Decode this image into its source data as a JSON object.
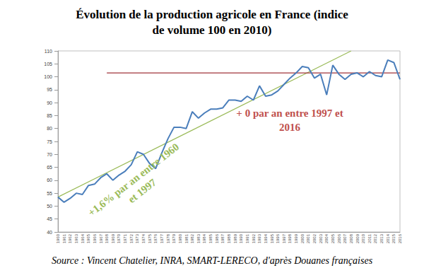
{
  "chart_data": {
    "type": "line",
    "title": "Évolution de la production agricole en France (indice\nde volume 100 en 2010)",
    "source": "Source : Vincent Chatelier, INRA, SMART-LERECO, d'après Douanes françaises",
    "categories": [
      "1960",
      "1961",
      "1962",
      "1963",
      "1964",
      "1965",
      "1966",
      "1967",
      "1968",
      "1969",
      "1970",
      "1971",
      "1972",
      "1973",
      "1974",
      "1975",
      "1976",
      "1977",
      "1978",
      "1979",
      "1980",
      "1981",
      "1982",
      "1983",
      "1984",
      "1985",
      "1986",
      "1987",
      "1988",
      "1989",
      "1990",
      "1991",
      "1992",
      "1993",
      "1994",
      "1995",
      "1996",
      "1997",
      "1998",
      "1999",
      "2000",
      "2001",
      "2002",
      "2003",
      "2004",
      "2005",
      "2006",
      "2007",
      "2008",
      "2009",
      "2010",
      "2011",
      "2012",
      "2013",
      "2014",
      "2015",
      "2016"
    ],
    "series": [
      {
        "color": "#4a7ebb",
        "values": [
          53.5,
          51.5,
          53,
          55,
          54.5,
          58,
          58.5,
          61,
          62.5,
          60,
          62,
          63.5,
          66,
          71,
          70,
          66.5,
          64.5,
          70.5,
          76,
          80.5,
          80.5,
          80,
          86.5,
          84,
          86,
          87.5,
          87.5,
          88,
          91,
          91,
          90.5,
          92.5,
          91,
          96.5,
          92.5,
          93,
          94.5,
          97,
          99.5,
          101.5,
          104,
          103.5,
          99.5,
          101,
          93,
          104.5,
          101,
          99,
          101,
          101.5,
          100,
          102,
          100.5,
          100,
          106.5,
          105.5,
          99
        ]
      },
      {
        "color": "#9bbb59",
        "values": [
          53.5,
          null,
          null,
          null,
          null,
          null,
          null,
          null,
          null,
          null,
          null,
          null,
          null,
          null,
          null,
          null,
          null,
          null,
          null,
          null,
          null,
          null,
          null,
          null,
          null,
          null,
          null,
          null,
          null,
          null,
          null,
          null,
          null,
          null,
          null,
          null,
          null,
          null,
          null,
          null,
          null,
          null,
          null,
          null,
          null,
          null,
          null,
          null,
          110,
          null,
          null,
          null,
          null,
          null,
          null,
          null,
          null
        ]
      },
      {
        "color": "#a0353a",
        "values": [
          null,
          null,
          null,
          null,
          null,
          null,
          null,
          null,
          101.5,
          null,
          null,
          null,
          null,
          null,
          null,
          null,
          null,
          null,
          null,
          null,
          null,
          null,
          null,
          null,
          null,
          null,
          null,
          null,
          null,
          null,
          null,
          null,
          null,
          null,
          null,
          null,
          null,
          null,
          null,
          null,
          null,
          null,
          null,
          null,
          null,
          null,
          null,
          null,
          null,
          null,
          null,
          null,
          null,
          null,
          null,
          null,
          101.5
        ]
      }
    ],
    "ylim": [
      40,
      110
    ],
    "yticks": [
      40,
      45,
      50,
      55,
      60,
      65,
      70,
      75,
      80,
      85,
      90,
      95,
      100,
      105,
      110
    ],
    "grid": false,
    "annotations": [
      {
        "text": "+1,6% par an entre 1960\net 1997",
        "color": "#9bbb59"
      },
      {
        "text": "+ 0 par an entre 1997 et\n2016",
        "color": "#c0504d"
      }
    ]
  }
}
